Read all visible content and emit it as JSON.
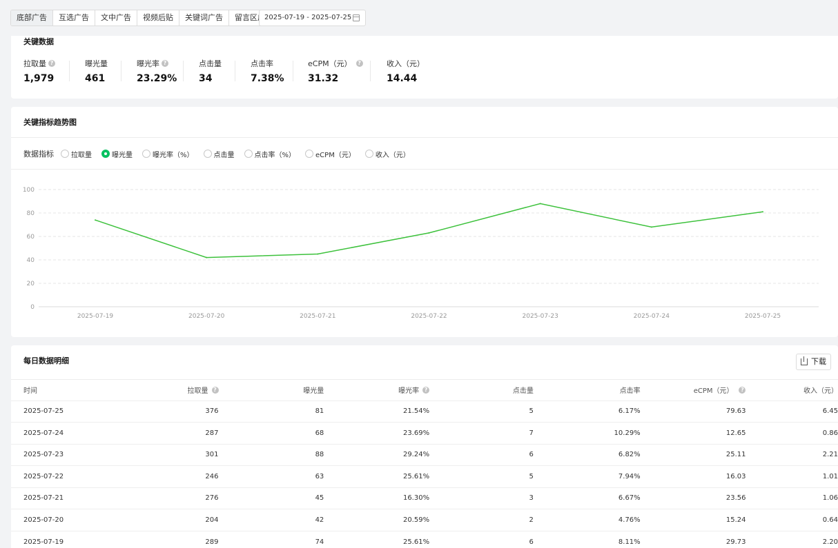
{
  "tabs": [
    "底部广告",
    "互选广告",
    "文中广告",
    "视频后贴",
    "关键词广告",
    "留言区广告"
  ],
  "date_range": "2025-07-19 - 2025-07-25",
  "key_data": {
    "title": "关键数据",
    "metrics": [
      {
        "label": "拉取量",
        "value": "1,979",
        "help": true
      },
      {
        "label": "曝光量",
        "value": "461",
        "help": false
      },
      {
        "label": "曝光率",
        "value": "23.29%",
        "help": true
      },
      {
        "label": "点击量",
        "value": "34",
        "help": false
      },
      {
        "label": "点击率",
        "value": "7.38%",
        "help": false
      },
      {
        "label": "eCPM（元）",
        "value": "31.32",
        "help": true
      },
      {
        "label": "收入（元）",
        "value": "14.44",
        "help": false
      }
    ]
  },
  "trend": {
    "title": "关键指标趋势图",
    "filter_label": "数据指标",
    "options": [
      "拉取量",
      "曝光量",
      "曝光率（%）",
      "点击量",
      "点击率（%）",
      "eCPM（元）",
      "收入（元）"
    ],
    "selected_index": 1
  },
  "chart_data": {
    "type": "line",
    "x": [
      "2025-07-19",
      "2025-07-20",
      "2025-07-21",
      "2025-07-22",
      "2025-07-23",
      "2025-07-24",
      "2025-07-25"
    ],
    "series": [
      {
        "values": [
          74,
          42,
          45,
          63,
          88,
          68,
          81
        ],
        "color": "#3cc13b"
      }
    ],
    "yticks": [
      "0",
      "20",
      "40",
      "60",
      "80",
      "100"
    ],
    "ylim": [
      0,
      100
    ],
    "grid": true
  },
  "daily": {
    "title": "每日数据明细",
    "download_label": "下载",
    "columns": [
      "时间",
      "拉取量",
      "曝光量",
      "曝光率",
      "点击量",
      "点击率",
      "eCPM（元）",
      "收入（元）"
    ],
    "rows": [
      [
        "2025-07-25",
        "376",
        "81",
        "21.54%",
        "5",
        "6.17%",
        "79.63",
        "6.45"
      ],
      [
        "2025-07-24",
        "287",
        "68",
        "23.69%",
        "7",
        "10.29%",
        "12.65",
        "0.86"
      ],
      [
        "2025-07-23",
        "301",
        "88",
        "29.24%",
        "6",
        "6.82%",
        "25.11",
        "2.21"
      ],
      [
        "2025-07-22",
        "246",
        "63",
        "25.61%",
        "5",
        "7.94%",
        "16.03",
        "1.01"
      ],
      [
        "2025-07-21",
        "276",
        "45",
        "16.30%",
        "3",
        "6.67%",
        "23.56",
        "1.06"
      ],
      [
        "2025-07-20",
        "204",
        "42",
        "20.59%",
        "2",
        "4.76%",
        "15.24",
        "0.64"
      ],
      [
        "2025-07-19",
        "289",
        "74",
        "25.61%",
        "6",
        "8.11%",
        "29.73",
        "2.20"
      ]
    ]
  }
}
